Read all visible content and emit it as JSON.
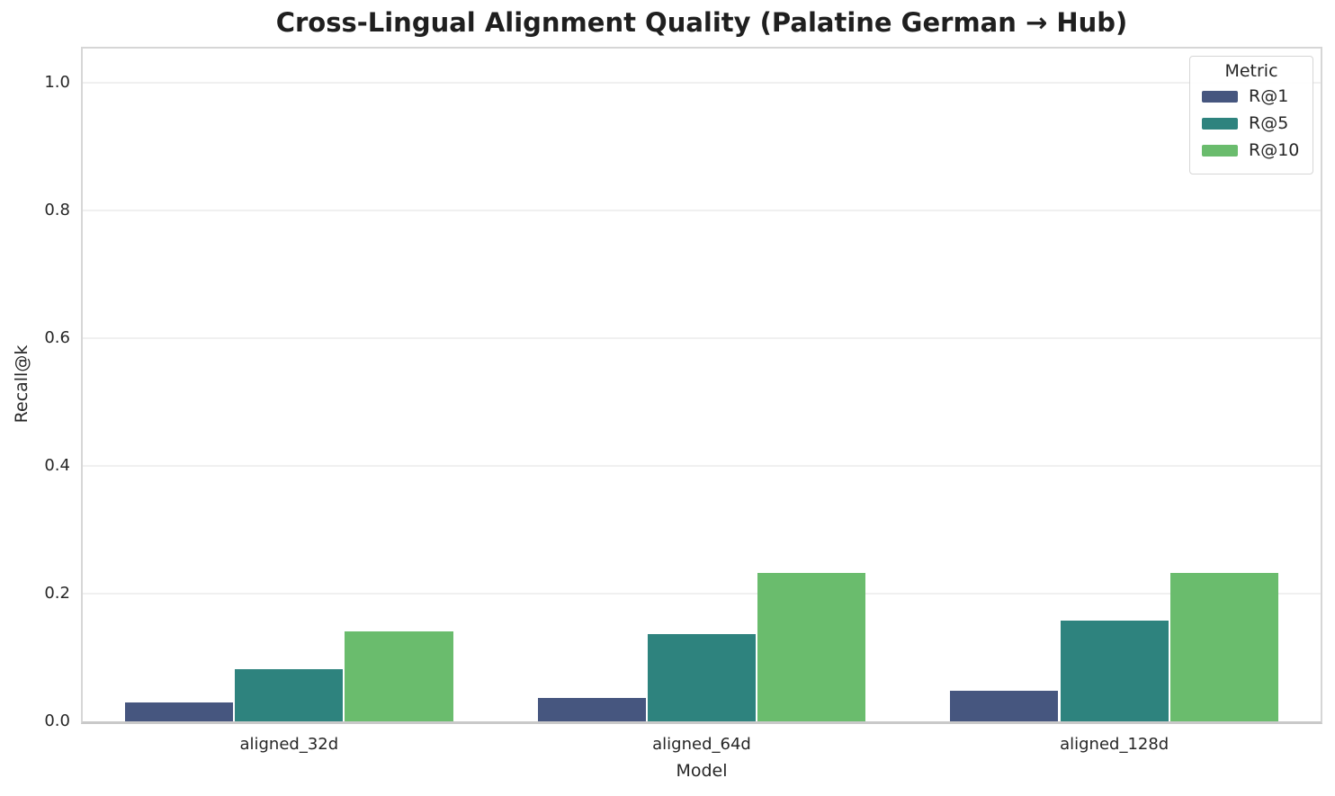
{
  "figure": {
    "background": "#ffffff"
  },
  "chart_data": {
    "type": "bar",
    "title": "Cross-Lingual Alignment Quality (Palatine German → Hub)",
    "xlabel": "Model",
    "ylabel": "Recall@k",
    "categories": [
      "aligned_32d",
      "aligned_64d",
      "aligned_128d"
    ],
    "series": [
      {
        "name": "R@1",
        "color": "#46567f",
        "values": [
          0.03,
          0.036,
          0.048
        ]
      },
      {
        "name": "R@5",
        "color": "#2e837e",
        "values": [
          0.081,
          0.137,
          0.158
        ]
      },
      {
        "name": "R@10",
        "color": "#6abc6d",
        "values": [
          0.141,
          0.232,
          0.232
        ]
      }
    ],
    "ylim": [
      0,
      1.053
    ],
    "yticks": [
      0,
      0.2,
      0.4,
      0.6,
      0.8,
      1.0
    ],
    "ytick_labels": [
      "0.0",
      "0.2",
      "0.4",
      "0.6",
      "0.8",
      "1.0"
    ],
    "grid": true,
    "legend": {
      "title": "Metric",
      "position": "upper right",
      "entries": [
        "R@1",
        "R@5",
        "R@10"
      ]
    }
  }
}
